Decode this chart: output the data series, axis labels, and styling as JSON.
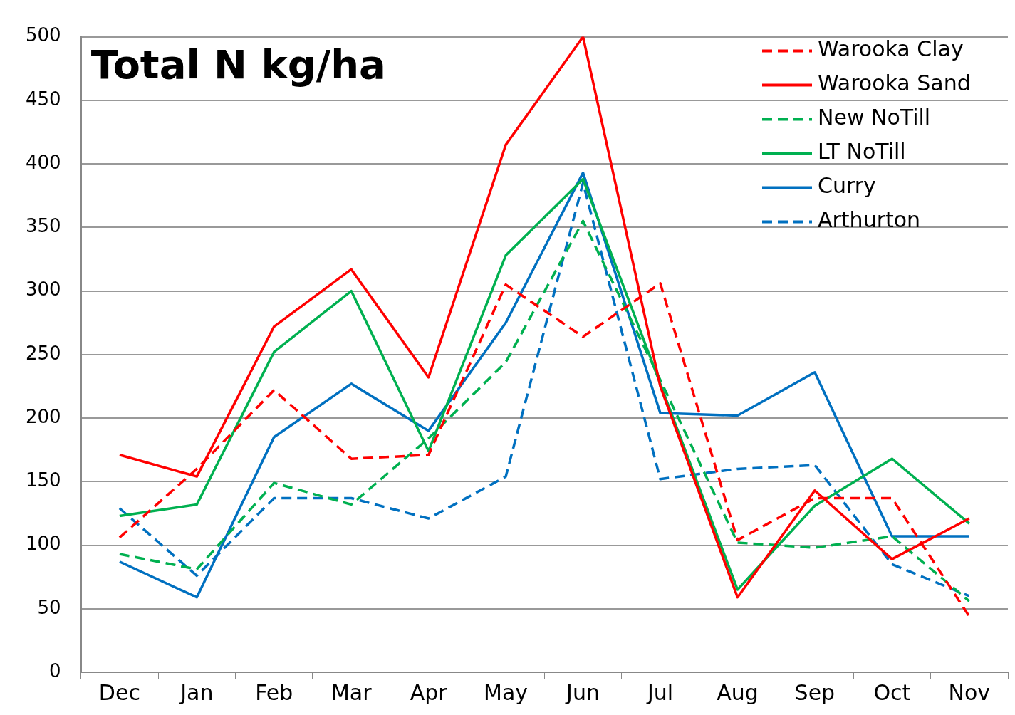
{
  "chart_data": {
    "type": "line",
    "title": "Total N kg/ha",
    "categories": [
      "Dec",
      "Jan",
      "Feb",
      "Mar",
      "Apr",
      "May",
      "Jun",
      "Jul",
      "Aug",
      "Sep",
      "Oct",
      "Nov"
    ],
    "series": [
      {
        "name": "Warooka Clay",
        "color": "#ff0000",
        "line_style": "dashed",
        "values": [
          106,
          160,
          222,
          168,
          171,
          305,
          264,
          306,
          104,
          137,
          137,
          44
        ]
      },
      {
        "name": "Warooka Sand",
        "color": "#ff0000",
        "line_style": "solid",
        "values": [
          171,
          154,
          272,
          317,
          232,
          415,
          500,
          225,
          59,
          143,
          89,
          121
        ]
      },
      {
        "name": "New NoTill",
        "color": "#00b050",
        "line_style": "dashed",
        "values": [
          93,
          81,
          149,
          132,
          184,
          244,
          355,
          230,
          102,
          98,
          107,
          56
        ]
      },
      {
        "name": "LT NoTill",
        "color": "#00b050",
        "line_style": "solid",
        "values": [
          123,
          132,
          252,
          300,
          174,
          328,
          388,
          227,
          65,
          131,
          168,
          117
        ]
      },
      {
        "name": "Curry",
        "color": "#0070c0",
        "line_style": "solid",
        "values": [
          87,
          59,
          185,
          227,
          190,
          275,
          393,
          204,
          202,
          236,
          107,
          107
        ]
      },
      {
        "name": "Arthurton",
        "color": "#0070c0",
        "line_style": "dashed",
        "values": [
          129,
          76,
          137,
          137,
          121,
          154,
          385,
          152,
          160,
          163,
          85,
          60
        ]
      }
    ],
    "ylim": [
      0,
      500
    ],
    "yticks": [
      0,
      50,
      100,
      150,
      200,
      250,
      300,
      350,
      400,
      450,
      500
    ],
    "grid": "y",
    "legend": "top right",
    "marker": "none"
  }
}
